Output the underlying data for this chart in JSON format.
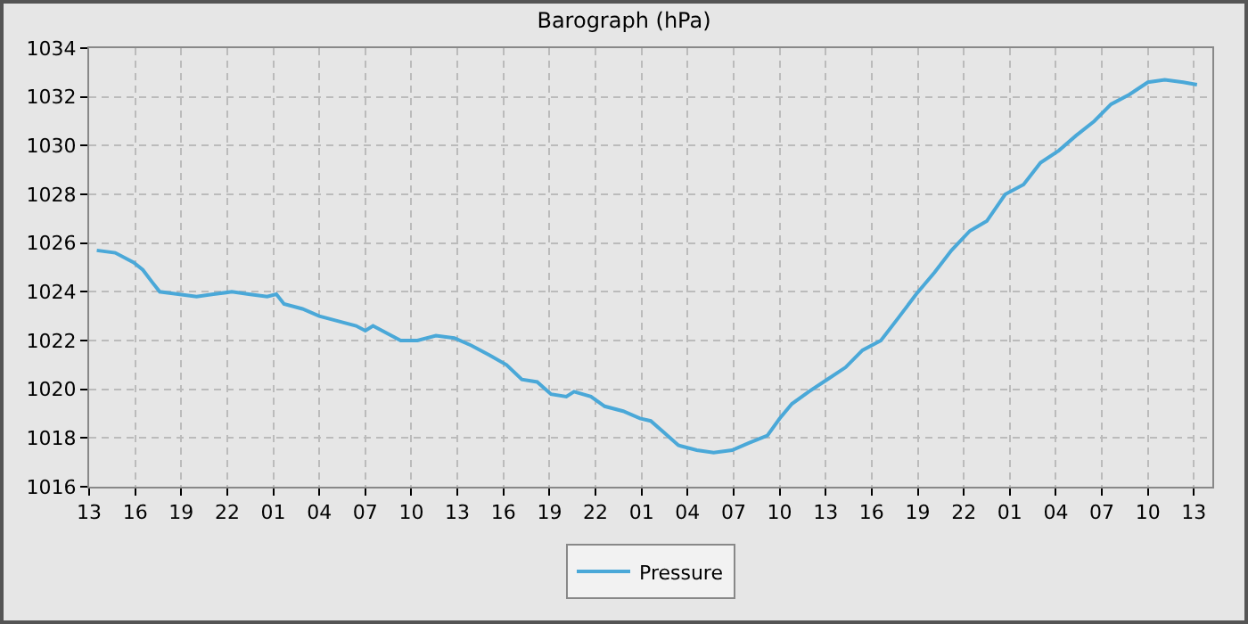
{
  "chart_data": {
    "type": "line",
    "title": "Barograph (hPa)",
    "x": [
      "--01-01T13:30",
      "--01-01T14:42",
      "--01-01T15:54",
      "--01-01T16:30",
      "--01-01T17:06",
      "--01-01T17:36",
      "--01-01T18:48",
      "--01-01T20:00",
      "--01-01T21:06",
      "--01-01T22:18",
      "--01-01T23:24",
      "--01-02T00:36",
      "--01-02T01:12",
      "--01-02T01:42",
      "--01-02T02:54",
      "--01-02T04:00",
      "--01-02T05:12",
      "--01-02T06:24",
      "--01-02T07:00",
      "--01-02T07:30",
      "--01-02T08:06",
      "--01-02T09:18",
      "--01-02T10:24",
      "--01-02T11:36",
      "--01-02T12:48",
      "--01-02T13:54",
      "--01-02T15:06",
      "--01-02T16:12",
      "--01-02T17:12",
      "--01-02T18:12",
      "--01-02T19:06",
      "--01-02T20:06",
      "--01-02T20:36",
      "--01-02T21:42",
      "--01-02T22:36",
      "--01-02T23:48",
      "--01-03T00:54",
      "--01-03T01:36",
      "--01-03T02:30",
      "--01-03T03:24",
      "--01-03T04:36",
      "--01-03T05:42",
      "--01-03T06:54",
      "--01-03T08:00",
      "--01-03T09:12",
      "--01-03T10:00",
      "--01-03T10:48",
      "--01-03T11:54",
      "--01-03T13:06",
      "--01-03T14:18",
      "--01-03T15:24",
      "--01-03T16:36",
      "--01-03T17:42",
      "--01-03T18:54",
      "--01-03T20:06",
      "--01-03T21:12",
      "--01-03T22:24",
      "--01-03T23:30",
      "--01-04T00:42",
      "--01-04T01:54",
      "--01-04T03:00",
      "--01-04T04:12",
      "--01-04T05:18",
      "--01-04T06:30",
      "--01-04T07:36",
      "--01-04T08:48",
      "--01-04T10:00",
      "--01-04T11:06",
      "--01-04T12:18",
      "--01-04T13:12"
    ],
    "series": [
      {
        "name": "Pressure",
        "color": "#4aa8d8",
        "values": [
          1025.7,
          1025.6,
          1025.2,
          1024.9,
          1024.4,
          1024.0,
          1023.9,
          1023.8,
          1023.9,
          1024.0,
          1023.9,
          1023.8,
          1023.9,
          1023.5,
          1023.3,
          1023.0,
          1022.8,
          1022.6,
          1022.4,
          1022.6,
          1022.4,
          1022.0,
          1022.0,
          1022.2,
          1022.1,
          1021.8,
          1021.4,
          1021.0,
          1020.4,
          1020.3,
          1019.8,
          1019.7,
          1019.9,
          1019.7,
          1019.3,
          1019.1,
          1018.8,
          1018.7,
          1018.2,
          1017.7,
          1017.5,
          1017.4,
          1017.5,
          1017.8,
          1018.1,
          1018.8,
          1019.4,
          1019.9,
          1020.4,
          1020.9,
          1021.6,
          1022.0,
          1022.9,
          1023.9,
          1024.8,
          1025.7,
          1026.5,
          1026.9,
          1028.0,
          1028.4,
          1029.3,
          1029.8,
          1030.4,
          1031.0,
          1031.7,
          1032.1,
          1032.6,
          1032.7,
          1032.6,
          1032.5
        ]
      }
    ],
    "xlim": [
      "--01-01T13:00",
      "--01-04T14:12"
    ],
    "xticks": [
      {
        "value": "--01-01T13:00",
        "label": "13"
      },
      {
        "value": "--01-01T16:00",
        "label": "16"
      },
      {
        "value": "--01-01T19:00",
        "label": "19"
      },
      {
        "value": "--01-01T22:00",
        "label": "22"
      },
      {
        "value": "--01-02T01:00",
        "label": "01"
      },
      {
        "value": "--01-02T04:00",
        "label": "04"
      },
      {
        "value": "--01-02T07:00",
        "label": "07"
      },
      {
        "value": "--01-02T10:00",
        "label": "10"
      },
      {
        "value": "--01-02T13:00",
        "label": "13"
      },
      {
        "value": "--01-02T16:00",
        "label": "16"
      },
      {
        "value": "--01-02T19:00",
        "label": "19"
      },
      {
        "value": "--01-02T22:00",
        "label": "22"
      },
      {
        "value": "--01-03T01:00",
        "label": "01"
      },
      {
        "value": "--01-03T04:00",
        "label": "04"
      },
      {
        "value": "--01-03T07:00",
        "label": "07"
      },
      {
        "value": "--01-03T10:00",
        "label": "10"
      },
      {
        "value": "--01-03T13:00",
        "label": "13"
      },
      {
        "value": "--01-03T16:00",
        "label": "16"
      },
      {
        "value": "--01-03T19:00",
        "label": "19"
      },
      {
        "value": "--01-03T22:00",
        "label": "22"
      },
      {
        "value": "--01-04T01:00",
        "label": "01"
      },
      {
        "value": "--01-04T04:00",
        "label": "04"
      },
      {
        "value": "--01-04T07:00",
        "label": "07"
      },
      {
        "value": "--01-04T10:00",
        "label": "10"
      },
      {
        "value": "--01-04T13:00",
        "label": "13"
      }
    ],
    "ylim": [
      1016,
      1034
    ],
    "yticks": [
      1016,
      1018,
      1020,
      1022,
      1024,
      1026,
      1028,
      1030,
      1032,
      1034
    ],
    "grid": true,
    "legend": "bottom",
    "marker": "none",
    "line_style": "solid"
  }
}
